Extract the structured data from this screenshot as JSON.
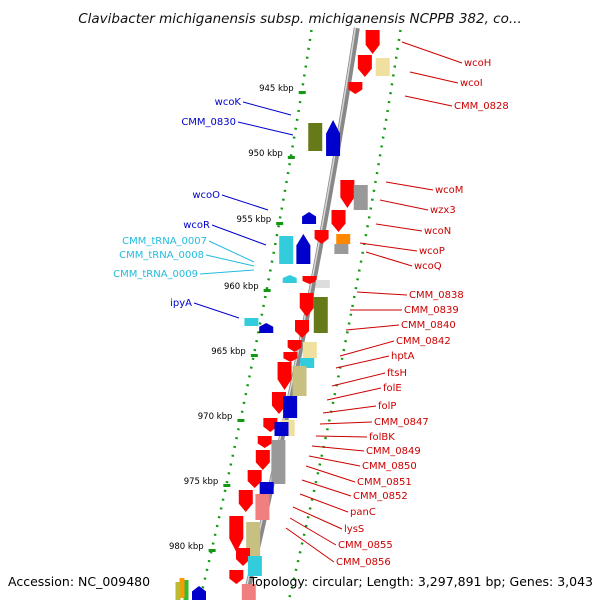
{
  "title": "Clavibacter michiganensis subsp. michiganensis NCPPB 382, co...",
  "footer": {
    "accession": "Accession: NC_009480",
    "topology": "Topology: circular; Length: 3,297,891 bp; Genes: 3,043"
  },
  "colors": {
    "red": "#ff0000",
    "blue": "#0000cc",
    "cyan": "#33ccdd",
    "olive": "#667a1a",
    "khaki": "#c8c080",
    "pale_yellow": "#f0e0a0",
    "grey": "#999999",
    "orange": "#ff8800",
    "pink": "#f08080",
    "green_dot": "#119911",
    "label_red": "#cc0000",
    "label_blue": "#0000cc",
    "label_cyan": "#22bbdd"
  },
  "ticks": [
    {
      "label": "945 kbp"
    },
    {
      "label": "950 kbp"
    },
    {
      "label": "955 kbp"
    },
    {
      "label": "960 kbp"
    },
    {
      "label": "965 kbp"
    },
    {
      "label": "970 kbp"
    },
    {
      "label": "975 kbp"
    },
    {
      "label": "980 kbp"
    }
  ],
  "left_labels": [
    {
      "text": "wcoK",
      "color": "label_blue"
    },
    {
      "text": "CMM_0830",
      "color": "label_blue"
    },
    {
      "text": "wcoO",
      "color": "label_blue"
    },
    {
      "text": "wcoR",
      "color": "label_blue"
    },
    {
      "text": "CMM_tRNA_0007",
      "color": "label_cyan"
    },
    {
      "text": "CMM_tRNA_0008",
      "color": "label_cyan"
    },
    {
      "text": "CMM_tRNA_0009",
      "color": "label_cyan"
    },
    {
      "text": "ipyA",
      "color": "label_blue"
    }
  ],
  "right_labels": [
    {
      "text": "wcoH"
    },
    {
      "text": "wcoI"
    },
    {
      "text": "CMM_0828"
    },
    {
      "text": "wcoM"
    },
    {
      "text": "wzx3"
    },
    {
      "text": "wcoN"
    },
    {
      "text": "wcoP"
    },
    {
      "text": "wcoQ"
    },
    {
      "text": "CMM_0838"
    },
    {
      "text": "CMM_0839"
    },
    {
      "text": "CMM_0840"
    },
    {
      "text": "CMM_0842"
    },
    {
      "text": "hptA"
    },
    {
      "text": "ftsH"
    },
    {
      "text": "folE"
    },
    {
      "text": "folP"
    },
    {
      "text": "CMM_0847"
    },
    {
      "text": "folBK"
    },
    {
      "text": "CMM_0849"
    },
    {
      "text": "CMM_0850"
    },
    {
      "text": "CMM_0851"
    },
    {
      "text": "CMM_0852"
    },
    {
      "text": "panC"
    },
    {
      "text": "lysS"
    },
    {
      "text": "CMM_0855"
    },
    {
      "text": "CMM_0856"
    }
  ]
}
